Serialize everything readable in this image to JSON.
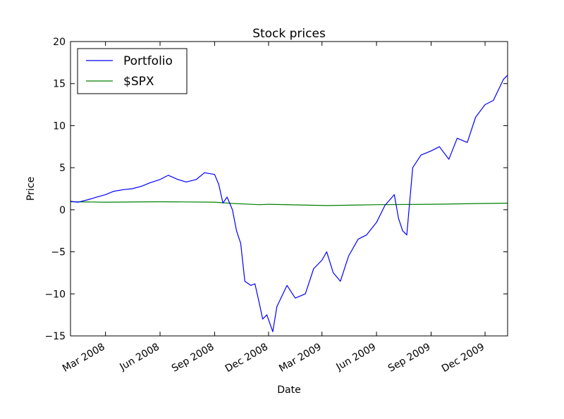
{
  "chart_data": {
    "type": "line",
    "title": "Stock prices",
    "xlabel": "Date",
    "ylabel": "Price",
    "ylim": [
      -15,
      20
    ],
    "xlim": [
      "2008-01-02",
      "2010-01-08"
    ],
    "yticks": [
      -15,
      -10,
      -5,
      0,
      5,
      10,
      15,
      20
    ],
    "ytick_labels": [
      "−15",
      "−10",
      "−5",
      "0",
      "5",
      "10",
      "15",
      "20"
    ],
    "xticks": [
      "2008-03-01",
      "2008-06-01",
      "2008-09-01",
      "2008-12-01",
      "2009-03-01",
      "2009-06-01",
      "2009-09-01",
      "2009-12-01"
    ],
    "xtick_labels": [
      "Mar 2008",
      "Jun 2008",
      "Sep 2008",
      "Dec 2008",
      "Mar 2009",
      "Jun 2009",
      "Sep 2009",
      "Dec 2009"
    ],
    "legend_position": "top-left",
    "grid": false,
    "series": [
      {
        "name": "Portfolio",
        "color": "#0000ff",
        "x": [
          "2008-01-02",
          "2008-01-15",
          "2008-02-01",
          "2008-02-15",
          "2008-03-01",
          "2008-03-15",
          "2008-04-01",
          "2008-04-15",
          "2008-05-01",
          "2008-05-15",
          "2008-06-01",
          "2008-06-15",
          "2008-07-01",
          "2008-07-15",
          "2008-08-01",
          "2008-08-15",
          "2008-09-01",
          "2008-09-08",
          "2008-09-15",
          "2008-09-22",
          "2008-10-01",
          "2008-10-08",
          "2008-10-15",
          "2008-10-22",
          "2008-11-01",
          "2008-11-08",
          "2008-11-15",
          "2008-11-21",
          "2008-11-28",
          "2008-12-08",
          "2008-12-15",
          "2009-01-01",
          "2009-01-15",
          "2009-02-01",
          "2009-02-15",
          "2009-03-01",
          "2009-03-09",
          "2009-03-20",
          "2009-04-01",
          "2009-04-15",
          "2009-05-01",
          "2009-05-15",
          "2009-06-01",
          "2009-06-15",
          "2009-07-01",
          "2009-07-08",
          "2009-07-15",
          "2009-07-22",
          "2009-08-01",
          "2009-08-15",
          "2009-09-01",
          "2009-09-15",
          "2009-10-01",
          "2009-10-15",
          "2009-11-01",
          "2009-11-15",
          "2009-12-01",
          "2009-12-15",
          "2010-01-01",
          "2010-01-08"
        ],
        "values": [
          1.0,
          0.9,
          1.2,
          1.5,
          1.8,
          2.2,
          2.4,
          2.5,
          2.8,
          3.2,
          3.6,
          4.1,
          3.6,
          3.3,
          3.6,
          4.4,
          4.2,
          3.0,
          0.8,
          1.5,
          0.0,
          -2.5,
          -4.0,
          -8.5,
          -9.0,
          -8.8,
          -11.0,
          -13.0,
          -12.5,
          -14.5,
          -11.5,
          -9.0,
          -10.5,
          -10.0,
          -7.0,
          -6.0,
          -5.0,
          -7.5,
          -8.5,
          -5.5,
          -3.5,
          -3.0,
          -1.5,
          0.5,
          1.8,
          -1.0,
          -2.5,
          -3.0,
          5.0,
          6.5,
          7.0,
          7.5,
          6.0,
          8.5,
          8.0,
          11.0,
          12.5,
          13.0,
          15.5,
          16.0
        ]
      },
      {
        "name": "$SPX",
        "color": "#008000",
        "x": [
          "2008-01-02",
          "2008-03-01",
          "2008-06-01",
          "2008-09-01",
          "2008-10-01",
          "2008-11-15",
          "2008-12-01",
          "2009-03-09",
          "2009-06-01",
          "2009-09-01",
          "2009-12-01",
          "2010-01-08"
        ],
        "values": [
          0.95,
          0.9,
          0.95,
          0.9,
          0.75,
          0.6,
          0.65,
          0.5,
          0.6,
          0.65,
          0.75,
          0.78
        ]
      }
    ]
  }
}
